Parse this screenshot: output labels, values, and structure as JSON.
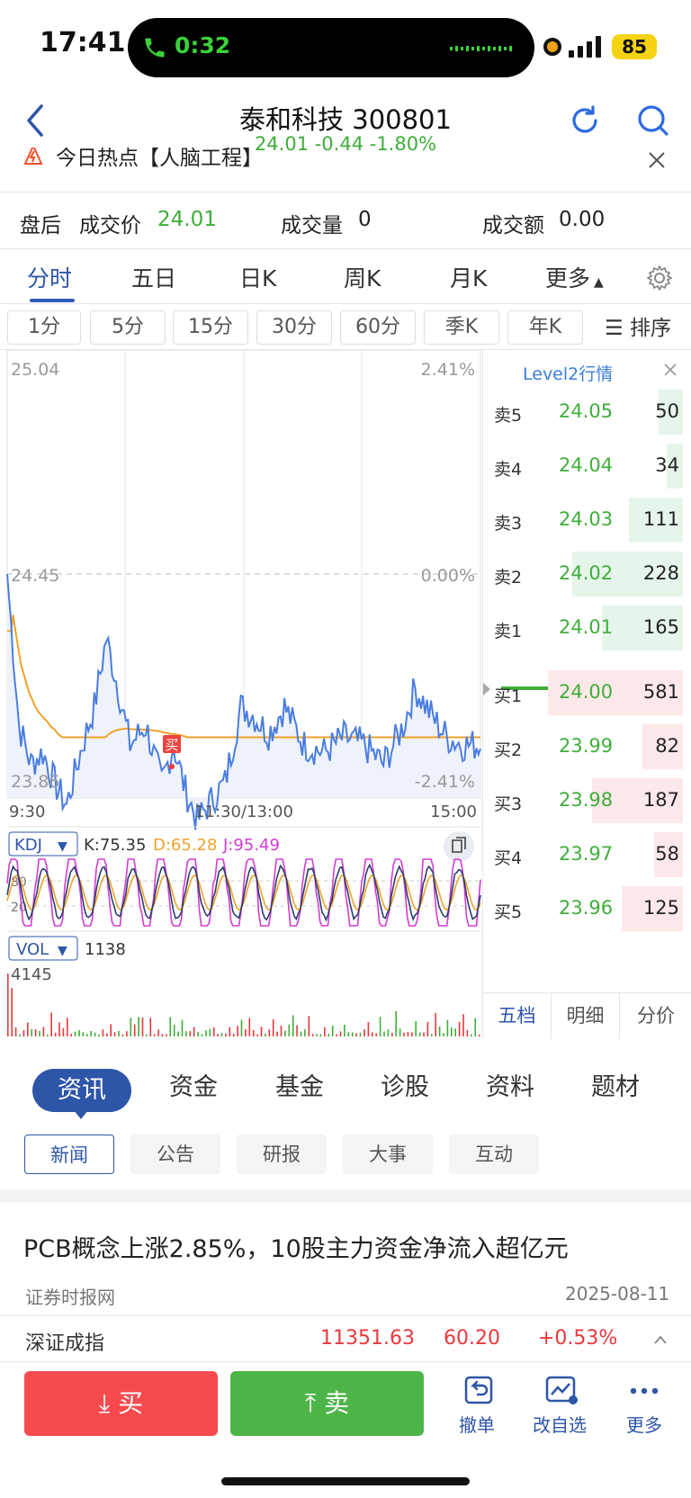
{
  "status": {
    "time": "17:41",
    "call_timer": "0:32",
    "battery": "85"
  },
  "header": {
    "title": "泰和科技 300801",
    "quote": "24.01 -0.44 -1.80%"
  },
  "hot": {
    "text": "今日热点【人脑工程】"
  },
  "after_hours": {
    "label": "盘后",
    "price_label": "成交价",
    "price": "24.01",
    "vol_label": "成交量",
    "vol": "0",
    "amt_label": "成交额",
    "amt": "0.00"
  },
  "period_tabs": [
    "分时",
    "五日",
    "日K",
    "周K",
    "月K",
    "更多"
  ],
  "intervals": [
    "1分",
    "5分",
    "15分",
    "30分",
    "60分",
    "季K",
    "年K"
  ],
  "sort_label": "排序",
  "intraday": {
    "price_high": "25.04",
    "price_mid": "24.45",
    "price_low": "23.86",
    "pct_high": "2.41%",
    "pct_mid": "0.00%",
    "pct_low": "-2.41%",
    "time_start": "9:30",
    "time_mid": "11:30/13:00",
    "time_end": "15:00",
    "buy_marker": "买"
  },
  "kdj": {
    "label": "KDJ",
    "k": "K:75.35",
    "d": "D:65.28",
    "j": "J:95.49",
    "level_80": "80",
    "level_20": "20"
  },
  "vol": {
    "label": "VOL",
    "value": "1138",
    "max": "4145"
  },
  "level2": {
    "title": "Level2行情",
    "asks": [
      {
        "label": "卖5",
        "price": "24.05",
        "vol": "50",
        "w": 0.18
      },
      {
        "label": "卖4",
        "price": "24.04",
        "vol": "34",
        "w": 0.12
      },
      {
        "label": "卖3",
        "price": "24.03",
        "vol": "111",
        "w": 0.4
      },
      {
        "label": "卖2",
        "price": "24.02",
        "vol": "228",
        "w": 0.82
      },
      {
        "label": "卖1",
        "price": "24.01",
        "vol": "165",
        "w": 0.6
      }
    ],
    "bids": [
      {
        "label": "买1",
        "price": "24.00",
        "vol": "581",
        "w": 1.0
      },
      {
        "label": "买2",
        "price": "23.99",
        "vol": "82",
        "w": 0.3
      },
      {
        "label": "买3",
        "price": "23.98",
        "vol": "187",
        "w": 0.67
      },
      {
        "label": "买4",
        "price": "23.97",
        "vol": "58",
        "w": 0.21
      },
      {
        "label": "买5",
        "price": "23.96",
        "vol": "125",
        "w": 0.45
      }
    ],
    "tabs": [
      "五档",
      "明细",
      "分价"
    ]
  },
  "section_tabs": [
    "资讯",
    "资金",
    "基金",
    "诊股",
    "资料",
    "题材"
  ],
  "news_tabs": [
    "新闻",
    "公告",
    "研报",
    "大事",
    "互动"
  ],
  "news": {
    "title": "PCB概念上涨2.85%，10股主力资金净流入超亿元",
    "source": "证券时报网",
    "date": "2025-08-11"
  },
  "index": {
    "name": "深证成指",
    "value": "11351.63",
    "change": "60.20",
    "pct": "+0.53%"
  },
  "bottom": {
    "buy": "买",
    "sell": "卖",
    "cancel": "撤单",
    "watchlist": "改自选",
    "more": "更多"
  },
  "colors": {
    "up": "#e8383d",
    "down": "#3fae3a",
    "accent": "#2d55a8",
    "price_line": "#4a7de0",
    "avg_line": "#f0a22a"
  }
}
